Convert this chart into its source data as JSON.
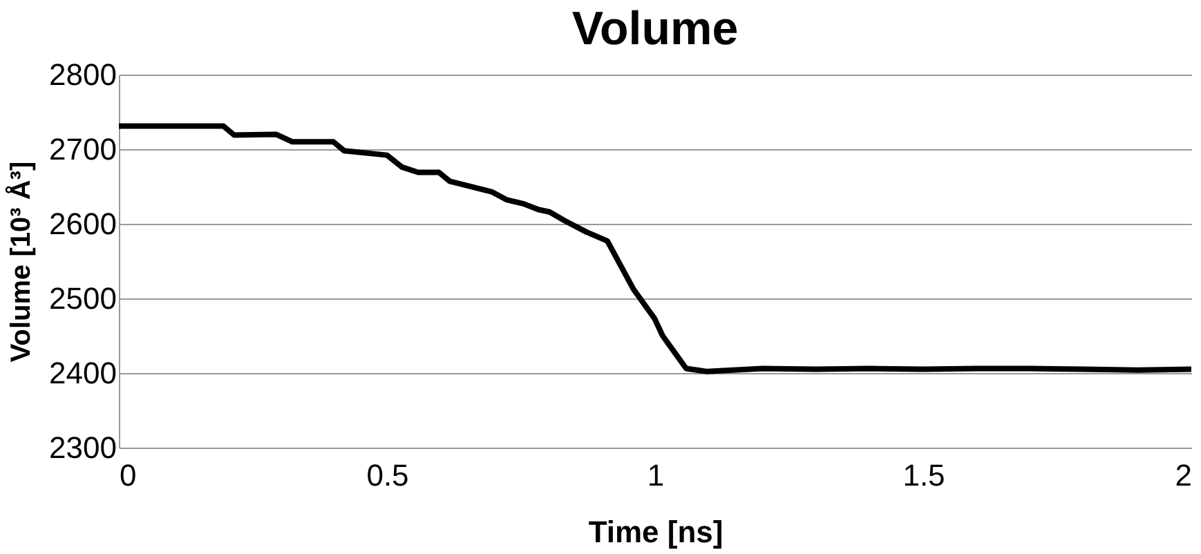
{
  "chart_data": {
    "type": "line",
    "title": "Volume",
    "xlabel": "Time [ns]",
    "ylabel": "Volume [10³ Å³]",
    "x": [
      0,
      0.195,
      0.215,
      0.293,
      0.323,
      0.4,
      0.42,
      0.5,
      0.528,
      0.558,
      0.597,
      0.617,
      0.695,
      0.724,
      0.754,
      0.783,
      0.803,
      0.832,
      0.872,
      0.911,
      0.96,
      0.999,
      1.014,
      1.058,
      1.097,
      1.2,
      1.3,
      1.4,
      1.5,
      1.6,
      1.7,
      1.8,
      1.9,
      2.0
    ],
    "series": [
      {
        "color": "#000000",
        "values": [
          2731,
          2731,
          2719,
          2720,
          2710,
          2710,
          2698,
          2692,
          2676,
          2669,
          2669,
          2657,
          2643,
          2632,
          2627,
          2619,
          2616,
          2604,
          2589,
          2577,
          2512,
          2473,
          2450,
          2406,
          2402,
          2406,
          2405,
          2406,
          2405,
          2406,
          2406,
          2405,
          2404,
          2405
        ]
      }
    ],
    "xlim": [
      0,
      2
    ],
    "xticks": [
      0,
      0.5,
      1,
      1.5,
      2
    ],
    "ylim": [
      2300,
      2800
    ],
    "yticks": [
      2300,
      2400,
      2500,
      2600,
      2700,
      2800
    ],
    "grid": "y",
    "marker": "none",
    "line_style": "solid"
  }
}
